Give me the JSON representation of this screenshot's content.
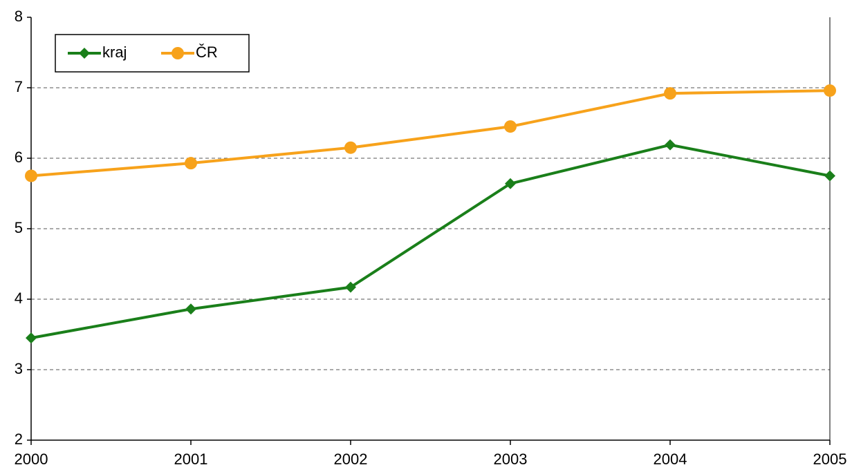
{
  "chart_data": {
    "type": "line",
    "x": [
      2000,
      2001,
      2002,
      2003,
      2004,
      2005
    ],
    "xlim": [
      2000,
      2005
    ],
    "xticks": [
      2000,
      2001,
      2002,
      2003,
      2004,
      2005
    ],
    "ylim": [
      2,
      8
    ],
    "yticks": [
      2,
      3,
      4,
      5,
      6,
      7,
      8
    ],
    "grid": true,
    "legend": "upper left",
    "series": [
      {
        "name": "kraj",
        "color": "#1a7f1a",
        "marker": "diamond",
        "values": [
          3.45,
          3.86,
          4.17,
          5.64,
          6.19,
          5.75
        ]
      },
      {
        "name": "ČR",
        "color": "#f7a21b",
        "marker": "circle",
        "values": [
          5.75,
          5.93,
          6.15,
          6.45,
          6.92,
          6.96
        ]
      }
    ]
  }
}
